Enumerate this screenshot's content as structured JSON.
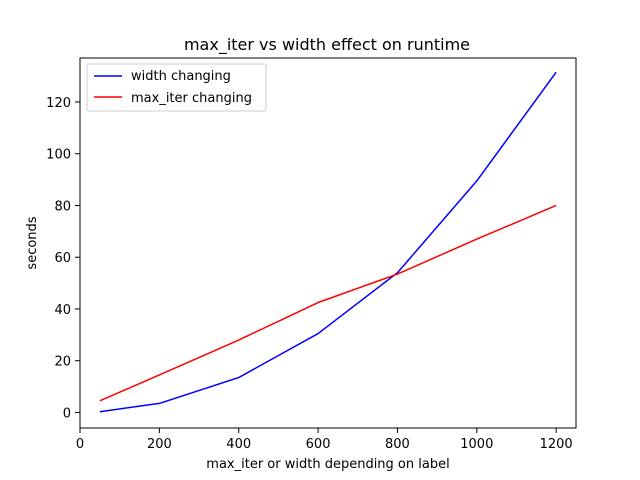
{
  "chart_data": {
    "type": "line",
    "title": "max_iter vs width effect on runtime",
    "xlabel": "max_iter or width depending on label",
    "ylabel": "seconds",
    "x": [
      50,
      200,
      400,
      600,
      800,
      1000,
      1200
    ],
    "xlim": [
      0,
      1250
    ],
    "ylim": [
      -6,
      137
    ],
    "xticks": [
      0,
      200,
      400,
      600,
      800,
      1000,
      1200
    ],
    "yticks": [
      0,
      20,
      40,
      60,
      80,
      100,
      120
    ],
    "grid": false,
    "legend_position": "top-left",
    "series": [
      {
        "name": "width changing",
        "color": "#0000ff",
        "values": [
          0.3,
          3.5,
          13.5,
          30.5,
          54,
          89.5,
          131.5
        ]
      },
      {
        "name": "max_iter changing",
        "color": "#ff0000",
        "values": [
          4.5,
          14.5,
          28,
          42.5,
          53.5,
          67,
          80
        ]
      }
    ]
  }
}
